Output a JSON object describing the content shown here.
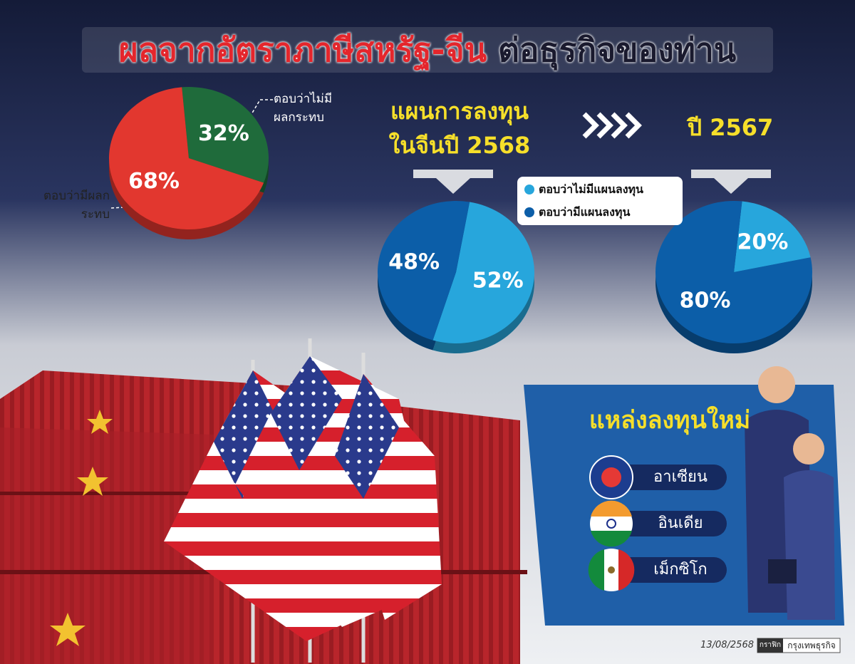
{
  "title": {
    "highlight": "ผลจากอัตราภาษีสหรัฐ-จีน",
    "rest": "ต่อธุรกิจของท่าน"
  },
  "chart_data": [
    {
      "type": "pie",
      "categories": [
        "ตอบว่าไม่มีผลกระทบ",
        "ตอบว่ามีผลกระทบ"
      ],
      "values": [
        32,
        68
      ],
      "value_labels": [
        "32%",
        "68%"
      ],
      "colors": [
        "#1f6b3b",
        "#e2372f"
      ]
    },
    {
      "type": "pie",
      "title": "แผนการลงทุน ในจีนปี 2568",
      "values": [
        52,
        48
      ],
      "value_labels": [
        "52%",
        "48%"
      ],
      "colors": [
        "#27a6dc",
        "#0c5ea8"
      ]
    },
    {
      "type": "pie",
      "title": "ปี 2567",
      "values": [
        20,
        80
      ],
      "value_labels": [
        "20%",
        "80%"
      ],
      "colors": [
        "#27a6dc",
        "#0c5ea8"
      ]
    }
  ],
  "legend": [
    "ตอบว่าไม่มีแผนลงทุน",
    "ตอบว่ามีแผนลงทุน"
  ],
  "new_investment": {
    "title": "แหล่งลงทุนใหม่",
    "items": [
      "อาเซียน",
      "อินเดีย",
      "เม็กซิโก"
    ]
  },
  "footer": {
    "date": "13/08/2568",
    "credit_label": "กราฟิก",
    "credit": "กรุงเทพธุรกิจ"
  }
}
